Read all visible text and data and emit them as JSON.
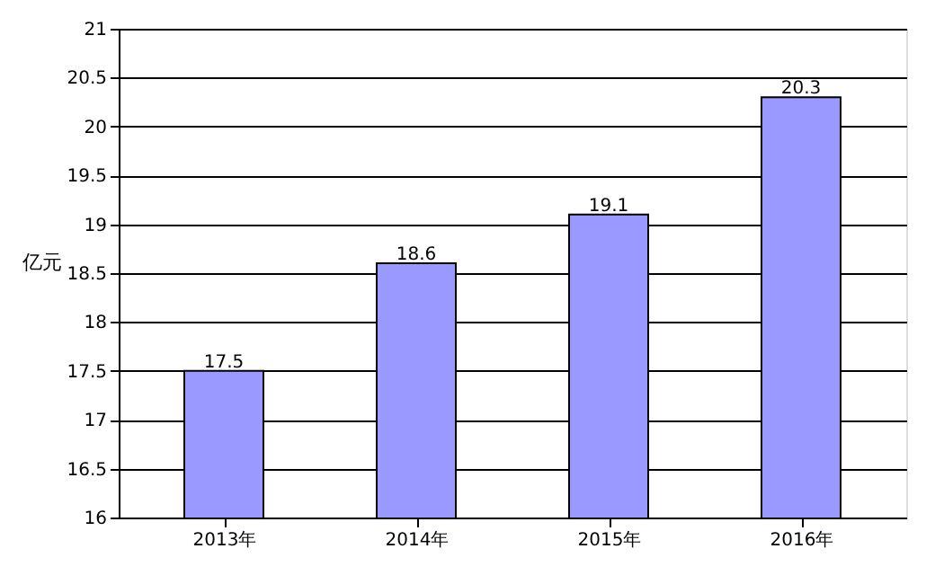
{
  "chart_data": {
    "type": "bar",
    "ylabel": "亿元",
    "categories": [
      "2013年",
      "2014年",
      "2015年",
      "2016年"
    ],
    "values": [
      17.5,
      18.6,
      19.1,
      20.3
    ],
    "color": "#9999ff",
    "ylim": [
      16,
      21
    ],
    "yticks": [
      16,
      16.5,
      17,
      17.5,
      18,
      18.5,
      19,
      19.5,
      20,
      20.5,
      21
    ],
    "grid": "y",
    "data_labels": true
  }
}
